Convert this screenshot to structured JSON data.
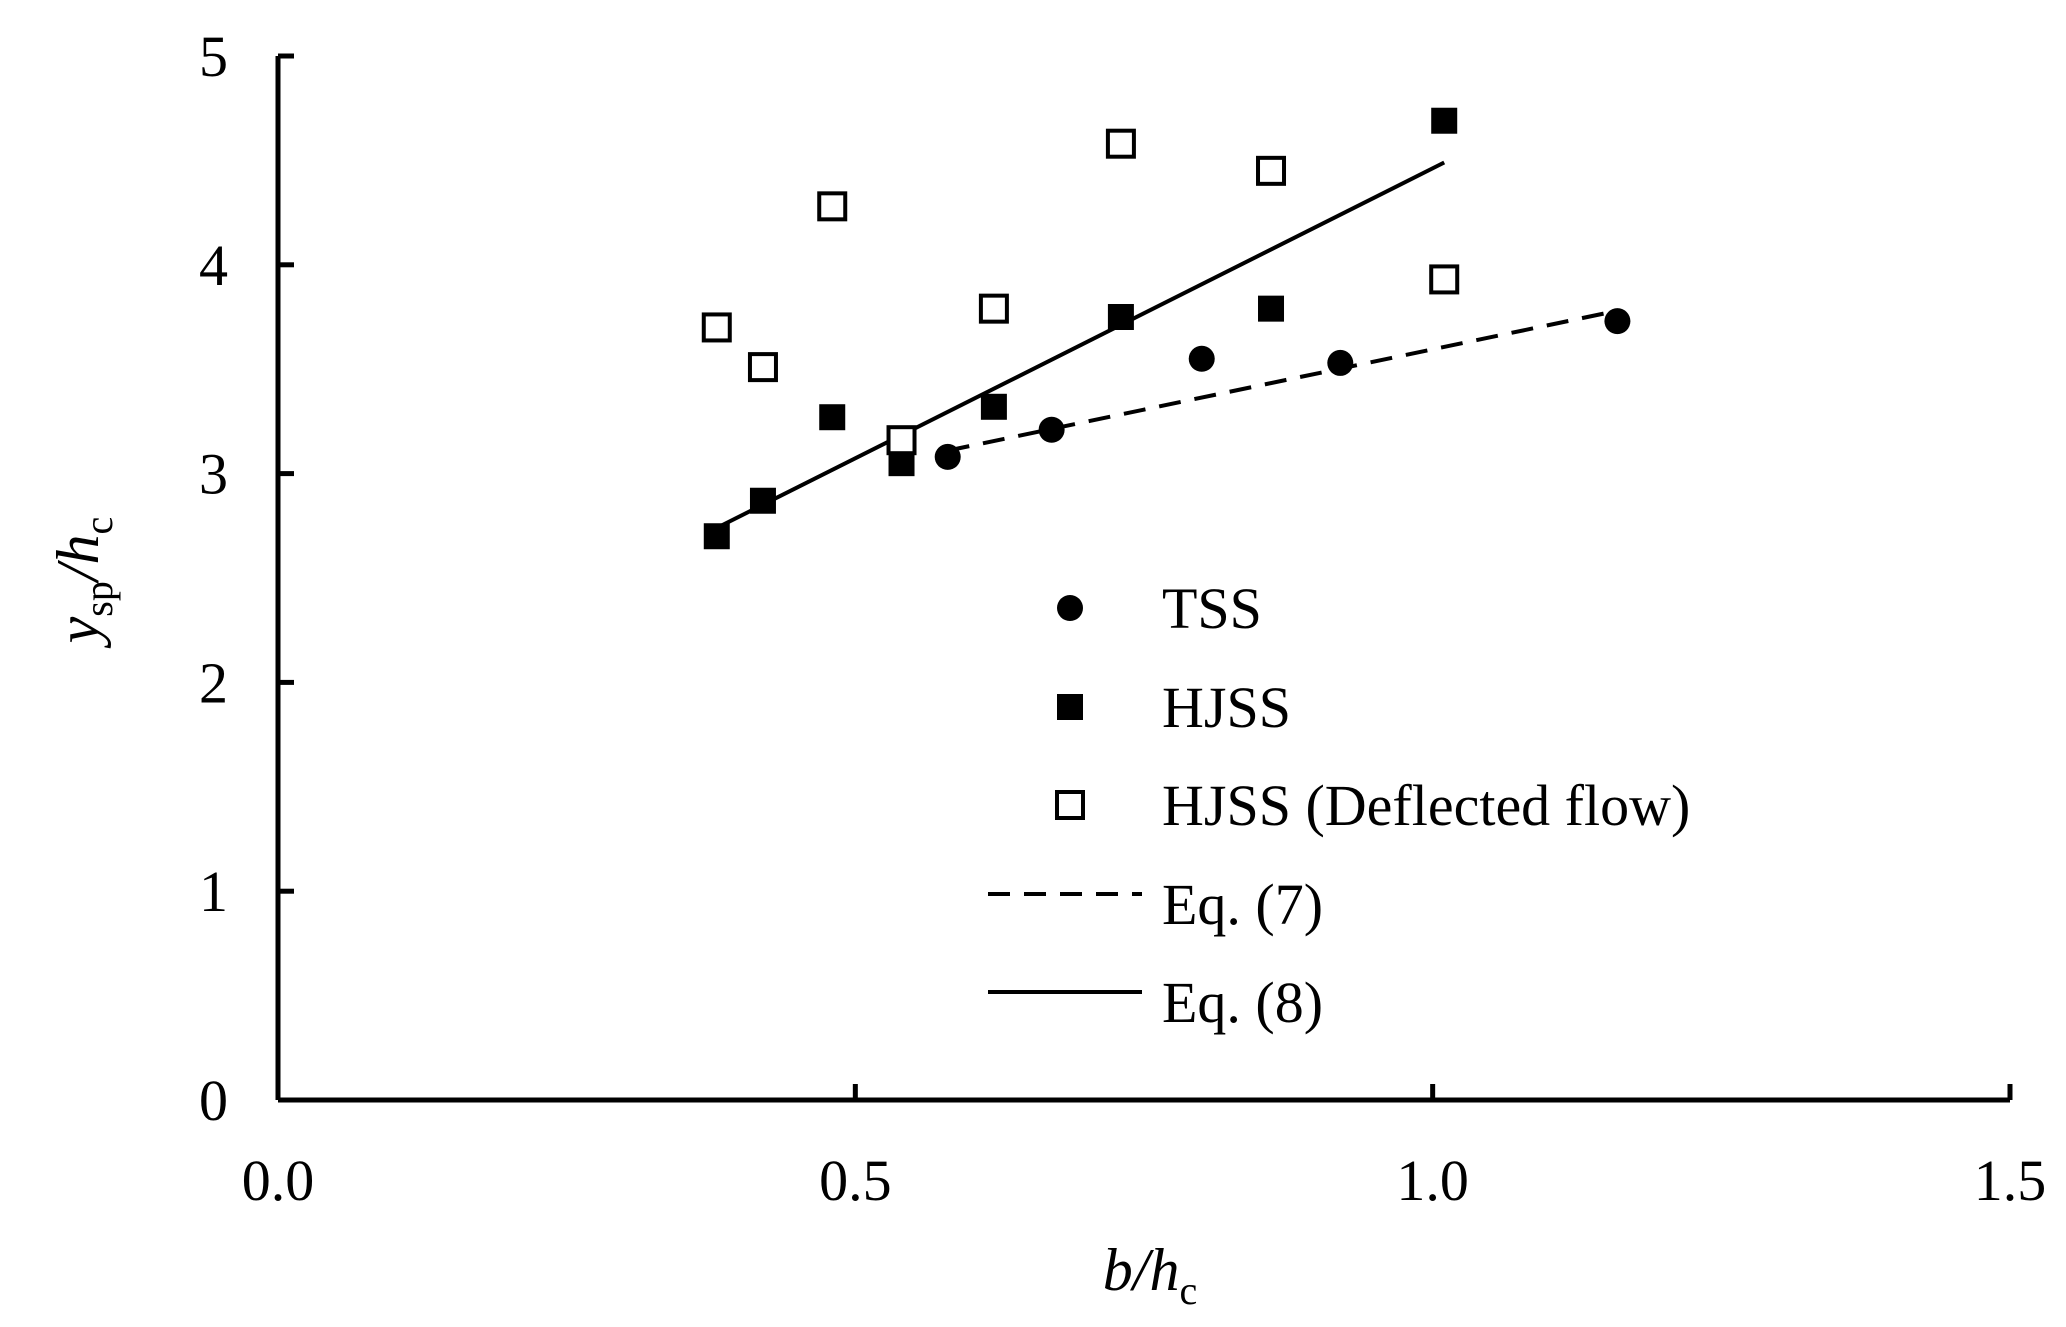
{
  "chart_data": {
    "type": "scatter",
    "title": "",
    "xlabel": {
      "main": "b/h",
      "sub": "c"
    },
    "ylabel": {
      "main": "y",
      "sub1": "sp",
      "mid": "/h",
      "sub2": "c"
    },
    "xlim": [
      0.0,
      1.5
    ],
    "ylim": [
      0,
      5
    ],
    "x_ticks": [
      0.0,
      0.5,
      1.0,
      1.5
    ],
    "x_tick_labels": [
      "0.0",
      "0.5",
      "1.0",
      "1.5"
    ],
    "y_ticks": [
      0,
      1,
      2,
      3,
      4,
      5
    ],
    "y_tick_labels": [
      "0",
      "1",
      "2",
      "3",
      "4",
      "5"
    ],
    "grid": false,
    "legend_position": "center-right",
    "series": [
      {
        "name": "TSS",
        "marker": "circle-filled",
        "points": [
          [
            0.58,
            3.08
          ],
          [
            0.67,
            3.21
          ],
          [
            0.8,
            3.55
          ],
          [
            0.92,
            3.53
          ],
          [
            1.16,
            3.73
          ]
        ]
      },
      {
        "name": "HJSS",
        "marker": "square-filled",
        "points": [
          [
            0.38,
            2.7
          ],
          [
            0.42,
            2.87
          ],
          [
            0.48,
            3.27
          ],
          [
            0.54,
            3.05
          ],
          [
            0.62,
            3.32
          ],
          [
            0.73,
            3.75
          ],
          [
            0.86,
            3.79
          ],
          [
            1.01,
            4.69
          ]
        ]
      },
      {
        "name": "HJSS (Deflected flow)",
        "marker": "square-open",
        "points": [
          [
            0.38,
            3.7
          ],
          [
            0.42,
            3.51
          ],
          [
            0.48,
            4.28
          ],
          [
            0.54,
            3.16
          ],
          [
            0.62,
            3.79
          ],
          [
            0.73,
            4.58
          ],
          [
            0.86,
            4.45
          ],
          [
            1.01,
            3.93
          ]
        ]
      }
    ],
    "lines": [
      {
        "name": "Eq. (7)",
        "style": "dashed",
        "points": [
          [
            0.58,
            3.11
          ],
          [
            1.16,
            3.78
          ]
        ]
      },
      {
        "name": "Eq. (8)",
        "style": "solid",
        "points": [
          [
            0.38,
            2.74
          ],
          [
            1.01,
            4.49
          ]
        ]
      }
    ],
    "colors": {
      "ink": "#000000",
      "background": "#ffffff"
    }
  }
}
